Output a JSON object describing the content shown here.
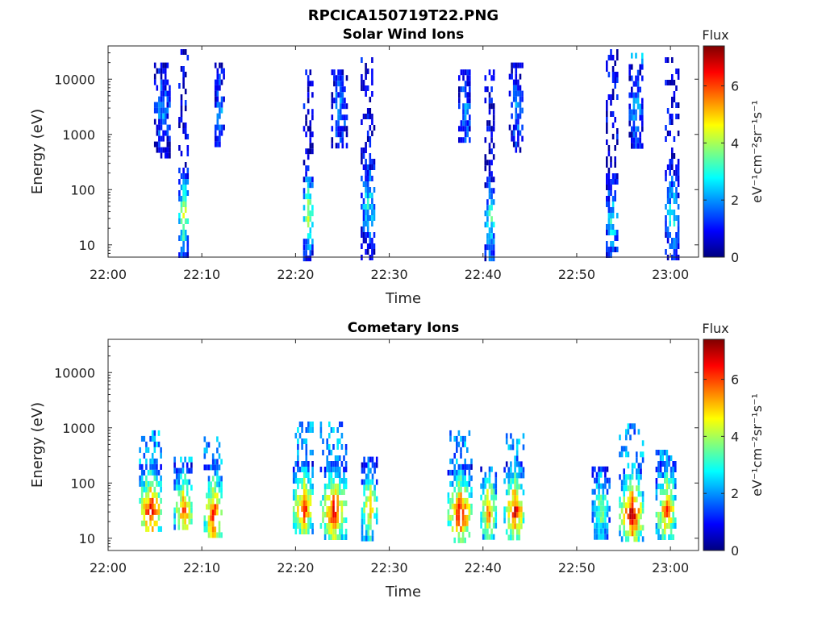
{
  "figure": {
    "title": "RPCICA150719T22.PNG"
  },
  "colormap": [
    "#00007f",
    "#0000ff",
    "#007fff",
    "#00ffff",
    "#7fff7f",
    "#ffff00",
    "#ff7f00",
    "#ff0000",
    "#7f0000"
  ],
  "chart_data": [
    {
      "type": "heatmap",
      "title": "Solar Wind Ions",
      "xlabel": "Time",
      "ylabel": "Energy (eV)",
      "x_ticks": [
        "22:00",
        "22:10",
        "22:20",
        "22:30",
        "22:40",
        "22:50",
        "23:00"
      ],
      "y_ticks": [
        "10",
        "100",
        "1000",
        "10000"
      ],
      "y_scale": "log",
      "xlim": [
        "22:00",
        "23:03"
      ],
      "ylim": [
        6,
        40000
      ],
      "colorbar": {
        "label": "Flux",
        "unit": "eV⁻¹cm⁻²sr⁻¹s⁻¹",
        "ticks": [
          "0",
          "2",
          "4",
          "6"
        ],
        "range": [
          0,
          7.4
        ]
      },
      "bursts": [
        {
          "t_min": 8.0,
          "e_min": 6,
          "e_max": 35000,
          "width_min": 1.0,
          "core_e": 40,
          "core_flux": 4.8,
          "hf_flux": 0.6
        },
        {
          "t_min": 5.7,
          "e_min": 400,
          "e_max": 20000,
          "width_min": 1.6,
          "core_e": 3000,
          "core_flux": 2.2,
          "hf_flux": 2.0
        },
        {
          "t_min": 11.8,
          "e_min": 700,
          "e_max": 20000,
          "width_min": 0.9,
          "core_e": 3000,
          "core_flux": 2.2,
          "hf_flux": 2.0
        },
        {
          "t_min": 21.3,
          "e_min": 6,
          "e_max": 15000,
          "width_min": 1.0,
          "core_e": 40,
          "core_flux": 4.6,
          "hf_flux": 0.6
        },
        {
          "t_min": 24.6,
          "e_min": 700,
          "e_max": 15000,
          "width_min": 1.6,
          "core_e": 3000,
          "core_flux": 2.2,
          "hf_flux": 2.0
        },
        {
          "t_min": 27.7,
          "e_min": 6,
          "e_max": 25000,
          "width_min": 1.5,
          "core_e": 60,
          "core_flux": 3.0,
          "hf_flux": 0.7
        },
        {
          "t_min": 38.0,
          "e_min": 800,
          "e_max": 15000,
          "width_min": 1.3,
          "core_e": 3000,
          "core_flux": 2.2,
          "hf_flux": 2.0
        },
        {
          "t_min": 40.7,
          "e_min": 6,
          "e_max": 15000,
          "width_min": 1.1,
          "core_e": 30,
          "core_flux": 3.4,
          "hf_flux": 0.6
        },
        {
          "t_min": 43.5,
          "e_min": 500,
          "e_max": 20000,
          "width_min": 1.5,
          "core_e": 3000,
          "core_flux": 2.2,
          "hf_flux": 2.0
        },
        {
          "t_min": 53.7,
          "e_min": 6,
          "e_max": 35000,
          "width_min": 1.2,
          "core_e": 30,
          "core_flux": 3.0,
          "hf_flux": 0.6
        },
        {
          "t_min": 56.3,
          "e_min": 600,
          "e_max": 30000,
          "width_min": 1.5,
          "core_e": 3000,
          "core_flux": 2.2,
          "hf_flux": 2.0
        },
        {
          "t_min": 60.1,
          "e_min": 6,
          "e_max": 25000,
          "width_min": 1.4,
          "core_e": 40,
          "core_flux": 3.2,
          "hf_flux": 0.6
        }
      ]
    },
    {
      "type": "heatmap",
      "title": "Cometary Ions",
      "xlabel": "Time",
      "ylabel": "Energy (eV)",
      "x_ticks": [
        "22:00",
        "22:10",
        "22:20",
        "22:30",
        "22:40",
        "22:50",
        "23:00"
      ],
      "y_ticks": [
        "10",
        "100",
        "1000",
        "10000"
      ],
      "y_scale": "log",
      "xlim": [
        "22:00",
        "23:03"
      ],
      "ylim": [
        6,
        40000
      ],
      "colorbar": {
        "label": "Flux",
        "unit": "eV⁻¹cm⁻²sr⁻¹s⁻¹",
        "ticks": [
          "0",
          "2",
          "4",
          "6"
        ],
        "range": [
          0,
          7.4
        ]
      },
      "bursts": [
        {
          "t_min": 4.5,
          "e_min": 15,
          "e_max": 900,
          "width_min": 2.4,
          "core_e": 35,
          "core_flux": 7.0,
          "hf_flux": 2.0
        },
        {
          "t_min": 8.0,
          "e_min": 15,
          "e_max": 300,
          "width_min": 2.0,
          "core_e": 35,
          "core_flux": 6.0,
          "hf_flux": 2.0
        },
        {
          "t_min": 11.2,
          "e_min": 12,
          "e_max": 700,
          "width_min": 2.0,
          "core_e": 30,
          "core_flux": 6.8,
          "hf_flux": 2.0
        },
        {
          "t_min": 20.8,
          "e_min": 12,
          "e_max": 1300,
          "width_min": 2.2,
          "core_e": 40,
          "core_flux": 6.5,
          "hf_flux": 2.0
        },
        {
          "t_min": 24.0,
          "e_min": 10,
          "e_max": 1300,
          "width_min": 2.8,
          "core_e": 35,
          "core_flux": 6.8,
          "hf_flux": 2.0
        },
        {
          "t_min": 27.8,
          "e_min": 10,
          "e_max": 300,
          "width_min": 1.6,
          "core_e": 40,
          "core_flux": 5.6,
          "hf_flux": 2.0
        },
        {
          "t_min": 37.5,
          "e_min": 10,
          "e_max": 900,
          "width_min": 2.6,
          "core_e": 30,
          "core_flux": 7.0,
          "hf_flux": 2.0
        },
        {
          "t_min": 40.5,
          "e_min": 10,
          "e_max": 200,
          "width_min": 1.6,
          "core_e": 35,
          "core_flux": 6.0,
          "hf_flux": 2.0
        },
        {
          "t_min": 43.3,
          "e_min": 10,
          "e_max": 800,
          "width_min": 2.2,
          "core_e": 35,
          "core_flux": 6.8,
          "hf_flux": 2.0
        },
        {
          "t_min": 52.5,
          "e_min": 10,
          "e_max": 200,
          "width_min": 1.8,
          "core_e": 40,
          "core_flux": 4.0,
          "hf_flux": 2.0
        },
        {
          "t_min": 55.8,
          "e_min": 10,
          "e_max": 1200,
          "width_min": 2.6,
          "core_e": 30,
          "core_flux": 7.2,
          "hf_flux": 2.0
        },
        {
          "t_min": 59.5,
          "e_min": 10,
          "e_max": 400,
          "width_min": 2.2,
          "core_e": 35,
          "core_flux": 6.0,
          "hf_flux": 2.0
        }
      ]
    }
  ]
}
